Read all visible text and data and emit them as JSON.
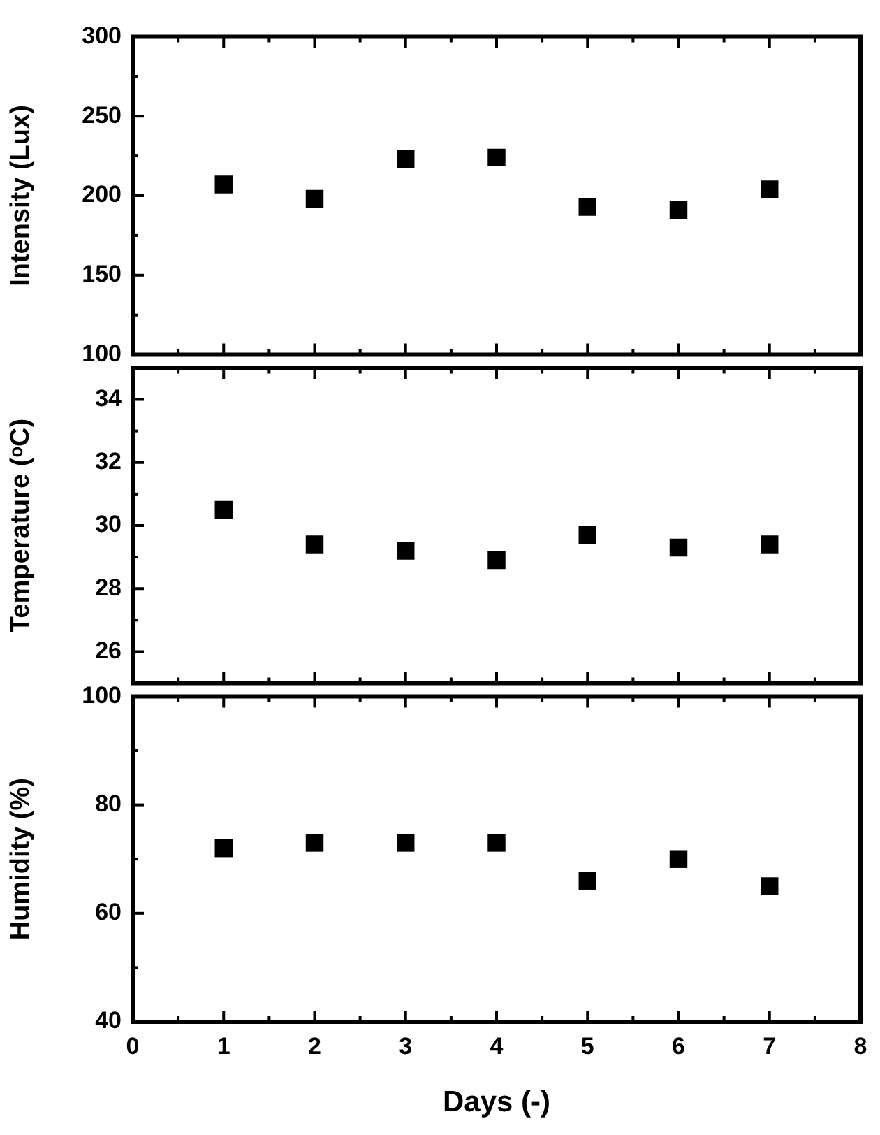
{
  "chart_data": [
    {
      "type": "scatter",
      "ylabel": "Intensity (Lux)",
      "x": [
        1,
        2,
        3,
        4,
        5,
        6,
        7
      ],
      "values": [
        207,
        198,
        223,
        224,
        193,
        191,
        204
      ],
      "color": "#000000",
      "marker": "square",
      "xlim": [
        0,
        8
      ],
      "xticks": [
        0,
        {
          "value": 0.5,
          "label": null
        },
        1,
        {
          "value": 1.5,
          "label": null
        },
        2,
        {
          "value": 2.5,
          "label": null
        },
        3,
        {
          "value": 3.5,
          "label": null
        },
        4,
        {
          "value": 4.5,
          "label": null
        },
        5,
        {
          "value": 5.5,
          "label": null
        },
        6,
        {
          "value": 6.5,
          "label": null
        },
        7,
        {
          "value": 7.5,
          "label": null
        },
        8
      ],
      "ylim": [
        100,
        300
      ],
      "yticks": [
        100,
        {
          "value": 125,
          "label": null
        },
        150,
        {
          "value": 175,
          "label": null
        },
        200,
        {
          "value": 225,
          "label": null
        },
        250,
        {
          "value": 275,
          "label": null
        },
        300
      ],
      "tick_labels": "y"
    },
    {
      "type": "scatter",
      "ylabel": "Temperature (ᵒC)",
      "x": [
        1,
        2,
        3,
        4,
        5,
        6,
        7
      ],
      "values": [
        30.5,
        29.4,
        29.2,
        28.9,
        29.7,
        29.3,
        29.4
      ],
      "color": "#000000",
      "marker": "square",
      "xlim": [
        0,
        8
      ],
      "xticks": [
        0,
        {
          "value": 0.5,
          "label": null
        },
        1,
        {
          "value": 1.5,
          "label": null
        },
        2,
        {
          "value": 2.5,
          "label": null
        },
        3,
        {
          "value": 3.5,
          "label": null
        },
        4,
        {
          "value": 4.5,
          "label": null
        },
        5,
        {
          "value": 5.5,
          "label": null
        },
        6,
        {
          "value": 6.5,
          "label": null
        },
        7,
        {
          "value": 7.5,
          "label": null
        },
        8
      ],
      "ylim": [
        25,
        35
      ],
      "yticks": [
        26,
        {
          "value": 27,
          "label": null
        },
        28,
        {
          "value": 29,
          "label": null
        },
        30,
        {
          "value": 31,
          "label": null
        },
        32,
        {
          "value": 33,
          "label": null
        },
        34
      ],
      "tick_labels": "y"
    },
    {
      "type": "scatter",
      "ylabel": "Humidity (%)",
      "xlabel": "Days (-)",
      "x": [
        1,
        2,
        3,
        4,
        5,
        6,
        7
      ],
      "values": [
        72,
        73,
        73,
        73,
        66,
        70,
        65
      ],
      "color": "#000000",
      "marker": "square",
      "xlim": [
        0,
        8
      ],
      "xticks": [
        0,
        {
          "value": 0.5,
          "label": null
        },
        1,
        {
          "value": 1.5,
          "label": null
        },
        2,
        {
          "value": 2.5,
          "label": null
        },
        3,
        {
          "value": 3.5,
          "label": null
        },
        4,
        {
          "value": 4.5,
          "label": null
        },
        5,
        {
          "value": 5.5,
          "label": null
        },
        6,
        {
          "value": 6.5,
          "label": null
        },
        7,
        {
          "value": 7.5,
          "label": null
        },
        8
      ],
      "ylim": [
        40,
        100
      ],
      "yticks": [
        40,
        {
          "value": 50,
          "label": null
        },
        60,
        {
          "value": 70,
          "label": null
        },
        80,
        {
          "value": 90,
          "label": null
        },
        100
      ]
    }
  ]
}
